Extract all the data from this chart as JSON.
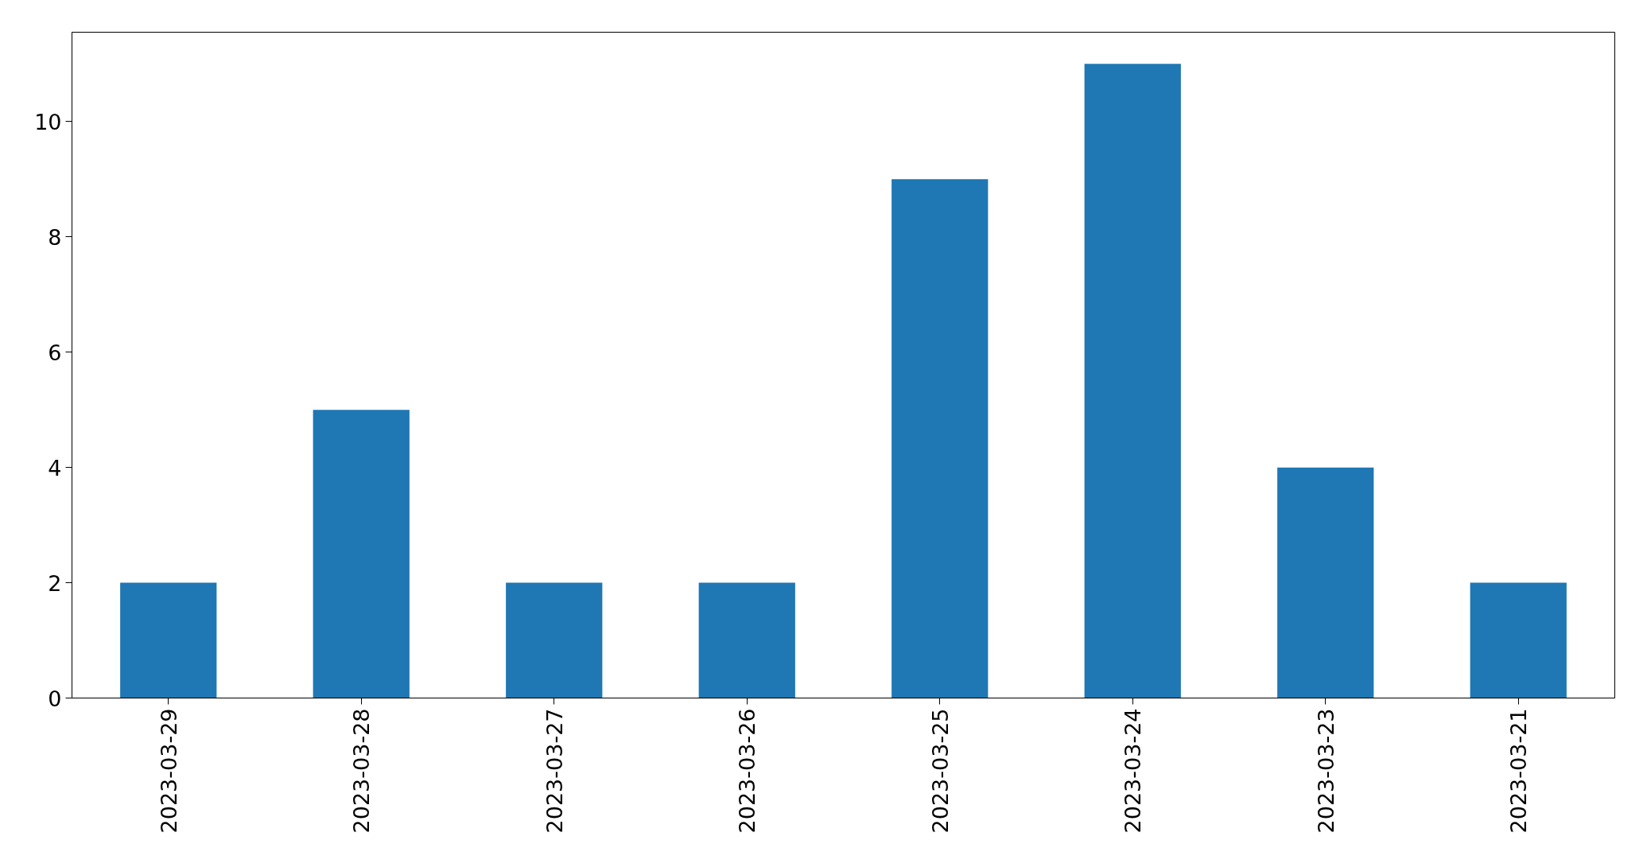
{
  "chart_data": {
    "type": "bar",
    "categories": [
      "2023-03-29",
      "2023-03-28",
      "2023-03-27",
      "2023-03-26",
      "2023-03-25",
      "2023-03-24",
      "2023-03-23",
      "2023-03-21"
    ],
    "values": [
      2,
      5,
      2,
      2,
      9,
      11,
      4,
      2
    ],
    "color": "#1f77b4",
    "ylim": [
      0,
      11.55
    ],
    "yticks": [
      0,
      2,
      4,
      6,
      8,
      10
    ]
  }
}
